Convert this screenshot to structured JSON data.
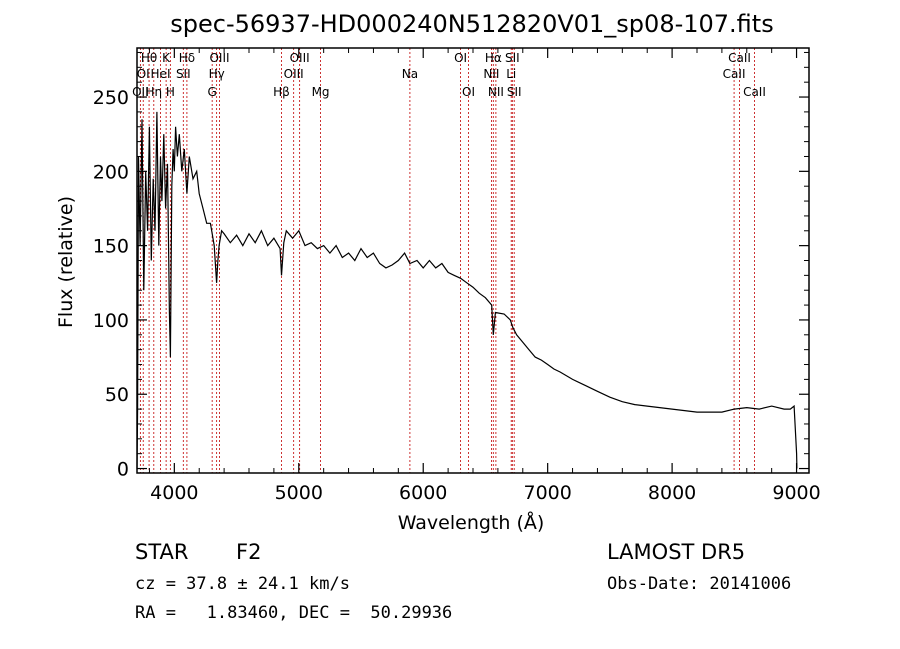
{
  "title": "spec-56937-HD000240N512820V01_sp08-107.fits",
  "chart_data": {
    "type": "line",
    "xlabel": "Wavelength (Å)",
    "ylabel": "Flux (relative)",
    "xlim": [
      3700,
      9100
    ],
    "ylim": [
      -3,
      283
    ],
    "x_ticks": [
      4000,
      5000,
      6000,
      7000,
      8000,
      9000
    ],
    "y_ticks": [
      0,
      50,
      100,
      150,
      200,
      250
    ],
    "series": [
      {
        "points": [
          [
            3700,
            0
          ],
          [
            3705,
            40
          ],
          [
            3712,
            210
          ],
          [
            3725,
            150
          ],
          [
            3740,
            235
          ],
          [
            3755,
            120
          ],
          [
            3770,
            200
          ],
          [
            3785,
            160
          ],
          [
            3800,
            230
          ],
          [
            3815,
            140
          ],
          [
            3830,
            195
          ],
          [
            3845,
            160
          ],
          [
            3860,
            240
          ],
          [
            3875,
            150
          ],
          [
            3889,
            210
          ],
          [
            3900,
            180
          ],
          [
            3915,
            225
          ],
          [
            3930,
            175
          ],
          [
            3945,
            205
          ],
          [
            3960,
            105
          ],
          [
            3968,
            75
          ],
          [
            3980,
            190
          ],
          [
            3990,
            215
          ],
          [
            4000,
            200
          ],
          [
            4010,
            230
          ],
          [
            4025,
            210
          ],
          [
            4040,
            225
          ],
          [
            4060,
            200
          ],
          [
            4080,
            215
          ],
          [
            4101,
            185
          ],
          [
            4120,
            210
          ],
          [
            4150,
            195
          ],
          [
            4180,
            200
          ],
          [
            4200,
            185
          ],
          [
            4230,
            175
          ],
          [
            4260,
            165
          ],
          [
            4290,
            165
          ],
          [
            4300,
            160
          ],
          [
            4320,
            150
          ],
          [
            4340,
            125
          ],
          [
            4350,
            140
          ],
          [
            4360,
            150
          ],
          [
            4380,
            160
          ],
          [
            4400,
            158
          ],
          [
            4450,
            152
          ],
          [
            4500,
            157
          ],
          [
            4550,
            150
          ],
          [
            4600,
            158
          ],
          [
            4650,
            152
          ],
          [
            4700,
            160
          ],
          [
            4750,
            150
          ],
          [
            4800,
            155
          ],
          [
            4850,
            148
          ],
          [
            4861,
            130
          ],
          [
            4880,
            152
          ],
          [
            4900,
            160
          ],
          [
            4950,
            155
          ],
          [
            5000,
            160
          ],
          [
            5050,
            150
          ],
          [
            5100,
            152
          ],
          [
            5150,
            148
          ],
          [
            5200,
            150
          ],
          [
            5250,
            145
          ],
          [
            5300,
            150
          ],
          [
            5350,
            142
          ],
          [
            5400,
            145
          ],
          [
            5450,
            140
          ],
          [
            5500,
            148
          ],
          [
            5550,
            142
          ],
          [
            5600,
            145
          ],
          [
            5650,
            138
          ],
          [
            5700,
            135
          ],
          [
            5750,
            137
          ],
          [
            5800,
            140
          ],
          [
            5850,
            145
          ],
          [
            5893,
            138
          ],
          [
            5950,
            140
          ],
          [
            6000,
            135
          ],
          [
            6050,
            140
          ],
          [
            6100,
            135
          ],
          [
            6150,
            138
          ],
          [
            6200,
            132
          ],
          [
            6250,
            130
          ],
          [
            6300,
            128
          ],
          [
            6350,
            125
          ],
          [
            6400,
            122
          ],
          [
            6450,
            118
          ],
          [
            6500,
            115
          ],
          [
            6550,
            110
          ],
          [
            6563,
            90
          ],
          [
            6580,
            105
          ],
          [
            6650,
            104
          ],
          [
            6700,
            100
          ],
          [
            6720,
            95
          ],
          [
            6750,
            90
          ],
          [
            6800,
            85
          ],
          [
            6850,
            80
          ],
          [
            6900,
            75
          ],
          [
            6950,
            73
          ],
          [
            7000,
            70
          ],
          [
            7050,
            67
          ],
          [
            7100,
            65
          ],
          [
            7200,
            60
          ],
          [
            7300,
            56
          ],
          [
            7400,
            52
          ],
          [
            7500,
            48
          ],
          [
            7600,
            45
          ],
          [
            7700,
            43
          ],
          [
            7800,
            42
          ],
          [
            7900,
            41
          ],
          [
            8000,
            40
          ],
          [
            8100,
            39
          ],
          [
            8200,
            38
          ],
          [
            8300,
            38
          ],
          [
            8400,
            38
          ],
          [
            8500,
            40
          ],
          [
            8600,
            41
          ],
          [
            8700,
            40
          ],
          [
            8800,
            42
          ],
          [
            8900,
            40
          ],
          [
            8950,
            40
          ],
          [
            8980,
            42
          ],
          [
            9000,
            10
          ],
          [
            9003,
            0
          ]
        ]
      }
    ],
    "line_markers": [
      {
        "wavelength": 3727,
        "label": "OII",
        "row": 3
      },
      {
        "wavelength": 3750,
        "label": "OI",
        "row": 2
      },
      {
        "wavelength": 3797,
        "label": "Hθ",
        "row": 1
      },
      {
        "wavelength": 3835,
        "label": "Hη",
        "row": 3
      },
      {
        "wavelength": 3889,
        "label": "HeI",
        "row": 2
      },
      {
        "wavelength": 3934,
        "label": "K",
        "row": 1
      },
      {
        "wavelength": 3968,
        "label": "H",
        "row": 3
      },
      {
        "wavelength": 4072,
        "label": "SII",
        "row": 2
      },
      {
        "wavelength": 4101,
        "label": "Hδ",
        "row": 1
      },
      {
        "wavelength": 4304,
        "label": "G",
        "row": 3
      },
      {
        "wavelength": 4340,
        "label": "Hγ",
        "row": 2
      },
      {
        "wavelength": 4363,
        "label": "OIII",
        "row": 1
      },
      {
        "wavelength": 4861,
        "label": "Hβ",
        "row": 3
      },
      {
        "wavelength": 4959,
        "label": "OIII",
        "row": 2
      },
      {
        "wavelength": 5007,
        "label": "OIII",
        "row": 1
      },
      {
        "wavelength": 5175,
        "label": "Mg",
        "row": 3
      },
      {
        "wavelength": 5893,
        "label": "Na",
        "row": 2
      },
      {
        "wavelength": 6300,
        "label": "OI",
        "row": 1
      },
      {
        "wavelength": 6364,
        "label": "OI",
        "row": 3
      },
      {
        "wavelength": 6548,
        "label": "NII",
        "row": 2
      },
      {
        "wavelength": 6563,
        "label": "Hα",
        "row": 1
      },
      {
        "wavelength": 6584,
        "label": "NII",
        "row": 3
      },
      {
        "wavelength": 6707,
        "label": "Li",
        "row": 2
      },
      {
        "wavelength": 6716,
        "label": "SII",
        "row": 1
      },
      {
        "wavelength": 6731,
        "label": "SII",
        "row": 3
      },
      {
        "wavelength": 8498,
        "label": "CaII",
        "row": 2
      },
      {
        "wavelength": 8542,
        "label": "CaII",
        "row": 1
      },
      {
        "wavelength": 8662,
        "label": "CaII",
        "row": 3
      }
    ],
    "marker_color": "#c00000"
  },
  "info": {
    "object_class": "STAR",
    "subclass": "F2",
    "survey": "LAMOST DR5",
    "velocity": "cz = 37.8 ± 24.1 km/s",
    "obs_date": "Obs-Date: 20141006",
    "coords": "RA =   1.83460, DEC =  50.29936"
  }
}
